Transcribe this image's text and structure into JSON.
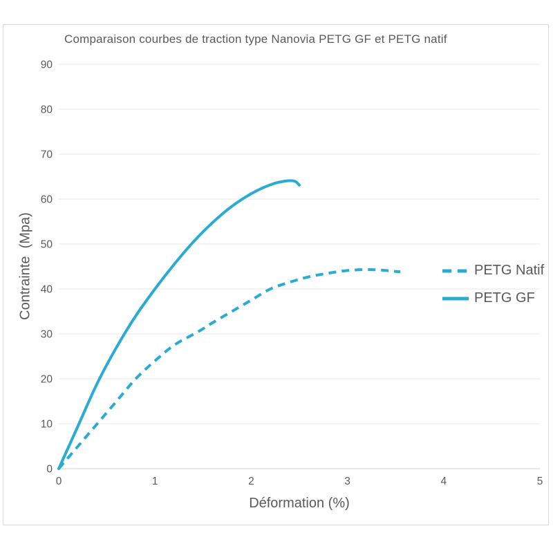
{
  "window": {
    "background": "#ffffff",
    "frame_border_color": "#d9d9d9"
  },
  "chart_data": {
    "type": "line",
    "title": "Comparaison courbes de traction type Nanovia PETG GF et PETG natif",
    "xlabel": "Déformation (%)",
    "ylabel": "Contrainte  (Mpa)",
    "xlim": [
      0,
      5
    ],
    "ylim": [
      0,
      90
    ],
    "x_ticks": [
      0,
      1,
      2,
      3,
      4,
      5
    ],
    "y_ticks": [
      0,
      10,
      20,
      30,
      40,
      50,
      60,
      70,
      80,
      90
    ],
    "grid": "horizontal-only",
    "grid_color": "#e7e7e7",
    "axis_line_color": "#cfcfcf",
    "text_color": "#595959",
    "accent_color": "#29abd2",
    "legend_position": "right-middle",
    "series": [
      {
        "name": "PETG Natif",
        "style": "dashed",
        "color": "#29abd2",
        "points": [
          [
            0,
            0
          ],
          [
            0.2,
            5
          ],
          [
            0.4,
            10
          ],
          [
            0.6,
            15
          ],
          [
            0.8,
            20
          ],
          [
            1.0,
            24
          ],
          [
            1.2,
            27.5
          ],
          [
            1.45,
            30.5
          ],
          [
            1.6,
            32.5
          ],
          [
            1.8,
            35
          ],
          [
            2.0,
            37.5
          ],
          [
            2.2,
            40
          ],
          [
            2.4,
            41.5
          ],
          [
            2.6,
            42.7
          ],
          [
            2.8,
            43.5
          ],
          [
            3.0,
            44.1
          ],
          [
            3.2,
            44.3
          ],
          [
            3.35,
            44.2
          ],
          [
            3.45,
            44.0
          ],
          [
            3.55,
            43.8
          ]
        ]
      },
      {
        "name": "PETG GF",
        "style": "solid",
        "color": "#29abd2",
        "points": [
          [
            0,
            0
          ],
          [
            0.2,
            9.5
          ],
          [
            0.4,
            19
          ],
          [
            0.6,
            27
          ],
          [
            0.8,
            34
          ],
          [
            1.0,
            40
          ],
          [
            1.2,
            45.5
          ],
          [
            1.4,
            50.5
          ],
          [
            1.6,
            54.8
          ],
          [
            1.8,
            58.4
          ],
          [
            2.0,
            61.2
          ],
          [
            2.2,
            63.2
          ],
          [
            2.35,
            64.0
          ],
          [
            2.45,
            64.0
          ],
          [
            2.5,
            63.1
          ]
        ]
      }
    ]
  }
}
